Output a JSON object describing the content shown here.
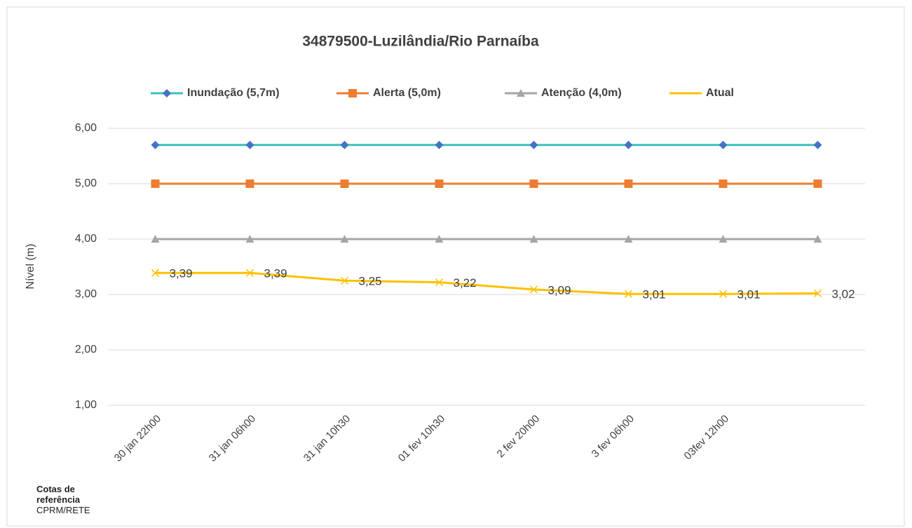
{
  "chart_data": {
    "type": "line",
    "title": "34879500-Luzilândia/Rio Parnaíba",
    "y_label": "Nível (m)",
    "categories": [
      "30 jan 22h00",
      "31 jan 06h00",
      "31 jan 10h30",
      "01 fev 10h30",
      "2 fev 20h00",
      "3 fev 06h00",
      "03fev 12h00",
      null
    ],
    "series": [
      {
        "name": "Inundação (5,7m)",
        "color": "#3cc0c0",
        "marker_color": "#4472c4",
        "marker": "diamond",
        "values": [
          5.7,
          5.7,
          5.7,
          5.7,
          5.7,
          5.7,
          5.7,
          5.7
        ]
      },
      {
        "name": "Alerta (5,0m)",
        "color": "#ed7d31",
        "marker_color": "#ed7d31",
        "marker": "square",
        "values": [
          5.0,
          5.0,
          5.0,
          5.0,
          5.0,
          5.0,
          5.0,
          5.0
        ]
      },
      {
        "name": "Atenção (4,0m)",
        "color": "#a5a5a5",
        "marker_color": "#a5a5a5",
        "marker": "triangle",
        "values": [
          4.0,
          4.0,
          4.0,
          4.0,
          4.0,
          4.0,
          4.0,
          4.0
        ]
      },
      {
        "name": "Atual",
        "color": "#ffc000",
        "marker_color": "#ffc000",
        "marker": "x",
        "values": [
          3.39,
          3.39,
          3.25,
          3.22,
          3.09,
          3.01,
          3.01,
          3.02
        ],
        "value_labels": [
          "3,39",
          "3,39",
          "3,25",
          "3,22",
          "3,09",
          "3,01",
          "3,01",
          "3,02"
        ]
      }
    ],
    "ylim": [
      1,
      6
    ],
    "yticks": [
      {
        "value": 1,
        "label": "1,00"
      },
      {
        "value": 2,
        "label": "2,00"
      },
      {
        "value": 3,
        "label": "3,00"
      },
      {
        "value": 4,
        "label": "4,00"
      },
      {
        "value": 5,
        "label": "5,00"
      },
      {
        "value": 6,
        "label": "6,00"
      }
    ],
    "grid": true,
    "legend": "top",
    "footnote": {
      "title": "Cotas de referência",
      "source": "CPRM/RETE"
    }
  }
}
